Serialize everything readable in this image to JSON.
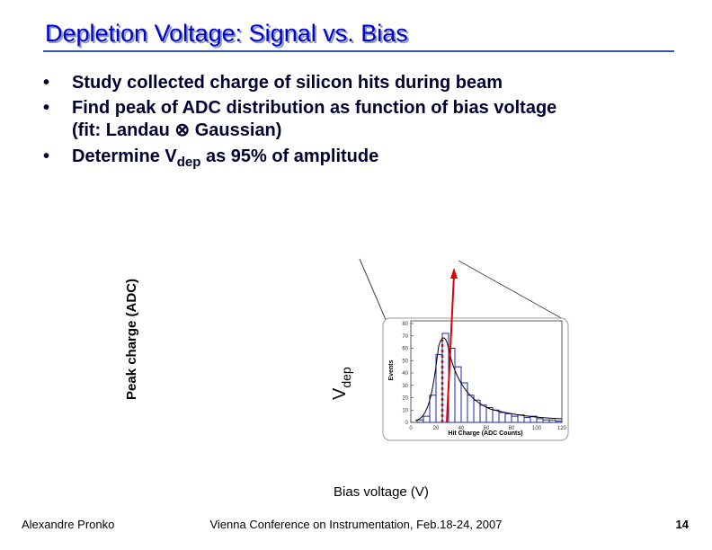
{
  "title": "Depletion Voltage: Signal vs. Bias",
  "bullets": [
    {
      "text": "Study collected charge of silicon hits during beam"
    },
    {
      "text": "Find peak of ADC distribution as function of bias voltage",
      "continuation": "(fit: Landau ⊗ Gaussian)"
    },
    {
      "parts": [
        "Determine V",
        "dep",
        " as 95% of amplitude"
      ]
    }
  ],
  "plot": {
    "ylabel": "Peak charge (ADC)",
    "xlabel": "Bias voltage (V)",
    "marker_label": [
      "V",
      "dep"
    ]
  },
  "inset": {
    "type": "histogram",
    "xlabel": "Hit Charge (ADC Counts)",
    "ylabel": "Events",
    "xlim": [
      0,
      120
    ],
    "ylim": [
      0,
      80
    ],
    "xticks": [
      0,
      20,
      40,
      60,
      80,
      100,
      120
    ],
    "yticks": [
      0,
      10,
      20,
      30,
      40,
      50,
      60,
      70,
      80
    ],
    "bins": [
      0,
      5,
      10,
      15,
      20,
      25,
      30,
      35,
      40,
      45,
      50,
      55,
      60,
      65,
      70,
      75,
      80,
      85,
      90,
      95,
      100,
      105,
      110,
      115,
      120
    ],
    "counts": [
      0,
      2,
      5,
      22,
      55,
      72,
      60,
      45,
      32,
      22,
      18,
      14,
      12,
      10,
      8,
      7,
      5,
      6,
      4,
      5,
      3,
      2,
      2,
      1
    ],
    "color": "#2222aa"
  },
  "footer": {
    "author": "Alexandre Pronko",
    "conference": "Vienna Conference on Instrumentation, Feb.18-24, 2007",
    "page": "14"
  }
}
